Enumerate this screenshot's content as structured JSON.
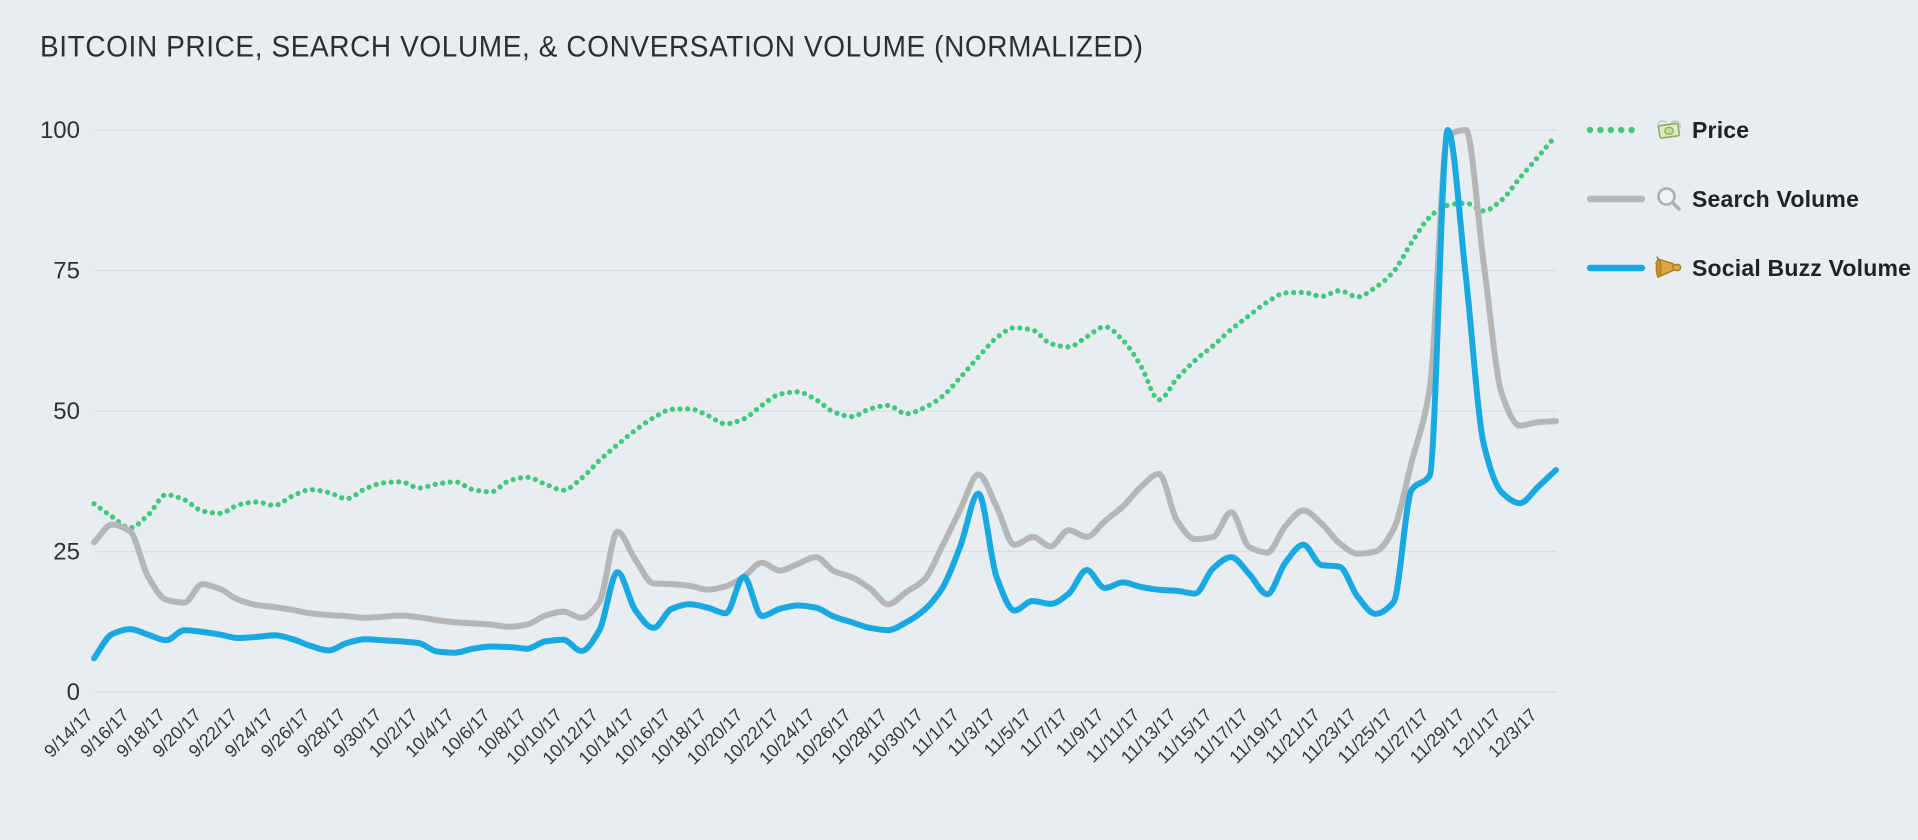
{
  "title": "BITCOIN PRICE, SEARCH VOLUME, & CONVERSATION VOLUME (NORMALIZED)",
  "legend": {
    "position": "right",
    "items": [
      {
        "label": "Price",
        "icon": "money-with-wings-icon",
        "swatch": "dotted-green-line"
      },
      {
        "label": "Search Volume",
        "icon": "search-icon",
        "swatch": "solid-gray-line"
      },
      {
        "label": "Social Buzz Volume",
        "icon": "megaphone-icon",
        "swatch": "solid-blue-line"
      }
    ]
  },
  "colors": {
    "background": "#e9edf0",
    "gridline": "#d9dde0",
    "title_text": "#2b2e33",
    "axis_text": "#2e3237",
    "price_green": "#3ec97e",
    "search_gray": "#b5b6b8",
    "buzz_blue": "#18a8e2"
  },
  "chart_data": {
    "type": "line",
    "title": "BITCOIN PRICE, SEARCH VOLUME, & CONVERSATION VOLUME (NORMALIZED)",
    "xlabel": "",
    "ylabel": "",
    "ylim": [
      0,
      100
    ],
    "y_ticks": [
      0,
      25,
      50,
      75,
      100
    ],
    "grid": "horizontal",
    "legend_position": "right",
    "x_tick_labels": [
      "9/14/17",
      "9/16/17",
      "9/18/17",
      "9/20/17",
      "9/22/17",
      "9/24/17",
      "9/26/17",
      "9/28/17",
      "9/30/17",
      "10/2/17",
      "10/4/17",
      "10/6/17",
      "10/8/17",
      "10/10/17",
      "10/12/17",
      "10/14/17",
      "10/16/17",
      "10/18/17",
      "10/20/17",
      "10/22/17",
      "10/24/17",
      "10/26/17",
      "10/28/17",
      "10/30/17",
      "11/1/17",
      "11/3/17",
      "11/5/17",
      "11/7/17",
      "11/9/17",
      "11/11/17",
      "11/13/17",
      "11/15/17",
      "11/17/17",
      "11/19/17",
      "11/21/17",
      "11/23/17",
      "11/25/17",
      "11/27/17",
      "11/29/17",
      "12/1/17",
      "12/3/17"
    ],
    "x": [
      "9/14/17",
      "9/15/17",
      "9/16/17",
      "9/17/17",
      "9/18/17",
      "9/19/17",
      "9/20/17",
      "9/21/17",
      "9/22/17",
      "9/23/17",
      "9/24/17",
      "9/25/17",
      "9/26/17",
      "9/27/17",
      "9/28/17",
      "9/29/17",
      "9/30/17",
      "10/1/17",
      "10/2/17",
      "10/3/17",
      "10/4/17",
      "10/5/17",
      "10/6/17",
      "10/7/17",
      "10/8/17",
      "10/9/17",
      "10/10/17",
      "10/11/17",
      "10/12/17",
      "10/13/17",
      "10/14/17",
      "10/15/17",
      "10/16/17",
      "10/17/17",
      "10/18/17",
      "10/19/17",
      "10/20/17",
      "10/21/17",
      "10/22/17",
      "10/23/17",
      "10/24/17",
      "10/25/17",
      "10/26/17",
      "10/27/17",
      "10/28/17",
      "10/29/17",
      "10/30/17",
      "10/31/17",
      "11/1/17",
      "11/2/17",
      "11/3/17",
      "11/4/17",
      "11/5/17",
      "11/6/17",
      "11/7/17",
      "11/8/17",
      "11/9/17",
      "11/10/17",
      "11/11/17",
      "11/12/17",
      "11/13/17",
      "11/14/17",
      "11/15/17",
      "11/16/17",
      "11/17/17",
      "11/18/17",
      "11/19/17",
      "11/20/17",
      "11/21/17",
      "11/22/17",
      "11/23/17",
      "11/24/17",
      "11/25/17",
      "11/26/17",
      "11/27/17",
      "11/28/17",
      "11/29/17",
      "11/30/17",
      "12/1/17",
      "12/2/17",
      "12/3/17",
      "12/4/17"
    ],
    "series": [
      {
        "name": "Price",
        "color": "#3ec97e",
        "line_style": "dotted",
        "values": [
          33.5,
          31.2,
          29.2,
          31.5,
          35.1,
          34.2,
          32.2,
          31.8,
          33.3,
          33.8,
          33.2,
          34.9,
          36.0,
          35.5,
          34.4,
          36.1,
          37.2,
          37.4,
          36.3,
          37.0,
          37.4,
          36.0,
          35.6,
          37.6,
          38.2,
          37.0,
          35.9,
          38.0,
          41.2,
          44.0,
          46.6,
          48.8,
          50.3,
          50.4,
          49.2,
          47.7,
          48.6,
          51.0,
          53.0,
          53.4,
          52.0,
          49.8,
          49.0,
          50.4,
          51.0,
          49.5,
          50.6,
          52.6,
          56.0,
          59.6,
          63.0,
          64.8,
          64.4,
          62.0,
          61.4,
          63.2,
          65.0,
          62.6,
          58.0,
          52.0,
          55.8,
          59.0,
          61.6,
          64.5,
          67.0,
          69.4,
          71.0,
          71.1,
          70.4,
          71.4,
          70.3,
          72.0,
          74.8,
          80.0,
          84.5,
          86.6,
          87.0,
          85.6,
          87.6,
          91.5,
          95.2,
          99.0
        ]
      },
      {
        "name": "Search Volume",
        "color": "#b5b6b8",
        "line_style": "solid",
        "values": [
          26.6,
          29.8,
          28.6,
          20.5,
          16.4,
          15.9,
          19.2,
          18.3,
          16.4,
          15.5,
          15.1,
          14.6,
          14.0,
          13.7,
          13.5,
          13.2,
          13.4,
          13.6,
          13.3,
          12.8,
          12.4,
          12.2,
          12.0,
          11.6,
          12.0,
          13.6,
          14.3,
          13.2,
          16.0,
          28.5,
          23.5,
          19.3,
          19.2,
          18.9,
          18.2,
          18.8,
          20.5,
          23.0,
          21.6,
          22.8,
          24.0,
          21.5,
          20.4,
          18.4,
          15.6,
          17.8,
          20.0,
          26.0,
          32.5,
          38.7,
          33.0,
          26.2,
          27.6,
          25.9,
          28.8,
          27.6,
          30.4,
          33.0,
          36.5,
          38.8,
          30.5,
          27.2,
          27.6,
          32.0,
          25.8,
          24.8,
          29.5,
          32.3,
          30.0,
          26.5,
          24.6,
          25.0,
          29.0,
          41.0,
          54.0,
          99.0,
          100.0,
          76.0,
          53.0,
          47.4,
          48.0,
          48.2
        ]
      },
      {
        "name": "Social Buzz Volume",
        "color": "#18a8e2",
        "line_style": "solid",
        "values": [
          6.0,
          10.3,
          11.2,
          10.2,
          9.2,
          11.0,
          10.7,
          10.2,
          9.6,
          9.8,
          10.1,
          9.4,
          8.2,
          7.4,
          8.7,
          9.4,
          9.2,
          9.0,
          8.7,
          7.2,
          7.0,
          7.7,
          8.1,
          8.0,
          7.7,
          9.0,
          9.3,
          7.3,
          11.0,
          21.3,
          14.5,
          11.4,
          14.8,
          15.6,
          15.0,
          14.0,
          20.5,
          13.5,
          14.8,
          15.4,
          15.0,
          13.4,
          12.4,
          11.4,
          11.0,
          12.4,
          14.6,
          18.5,
          26.0,
          35.3,
          20.5,
          14.5,
          16.2,
          15.7,
          17.5,
          21.7,
          18.5,
          19.5,
          18.7,
          18.2,
          18.0,
          17.5,
          22.0,
          24.0,
          21.0,
          17.4,
          23.0,
          26.2,
          22.6,
          22.3,
          17.0,
          13.9,
          16.0,
          36.0,
          38.5,
          100.0,
          74.0,
          44.0,
          35.5,
          33.6,
          36.5,
          39.5
        ]
      }
    ]
  }
}
